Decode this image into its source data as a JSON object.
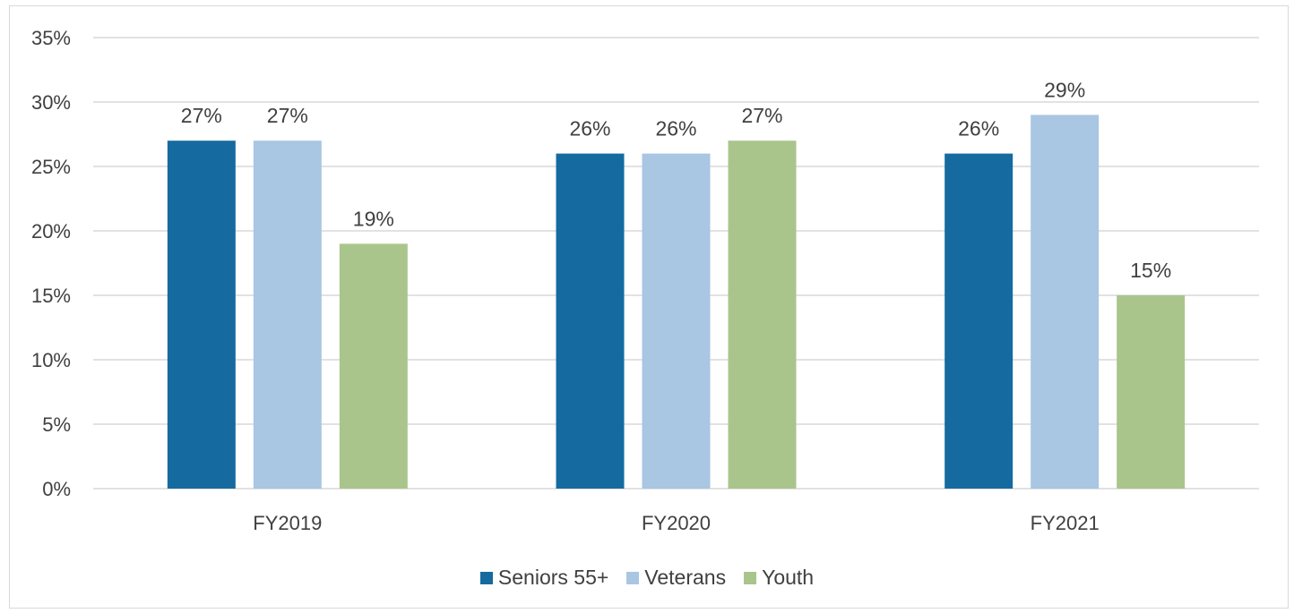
{
  "chart_data": {
    "type": "bar",
    "categories": [
      "FY2019",
      "FY2020",
      "FY2021"
    ],
    "series": [
      {
        "name": "Seniors 55+",
        "values": [
          27,
          26,
          26
        ],
        "color": "#156b9f",
        "labels": [
          "27%",
          "26%",
          "26%"
        ]
      },
      {
        "name": "Veterans",
        "values": [
          27,
          26,
          29
        ],
        "color": "#a9c6e3",
        "labels": [
          "27%",
          "26%",
          "29%"
        ]
      },
      {
        "name": "Youth",
        "values": [
          19,
          27,
          15
        ],
        "color": "#aac58b",
        "labels": [
          "19%",
          "27%",
          "15%"
        ]
      }
    ],
    "ylim": [
      0,
      35
    ],
    "yticks": [
      "0%",
      "5%",
      "10%",
      "15%",
      "20%",
      "25%",
      "30%",
      "35%"
    ],
    "ytick_values": [
      0,
      5,
      10,
      15,
      20,
      25,
      30,
      35
    ],
    "grid": true,
    "gridline_color": "#d9d9d9",
    "legend_position": "bottom",
    "title": "",
    "xlabel": "",
    "ylabel": ""
  }
}
